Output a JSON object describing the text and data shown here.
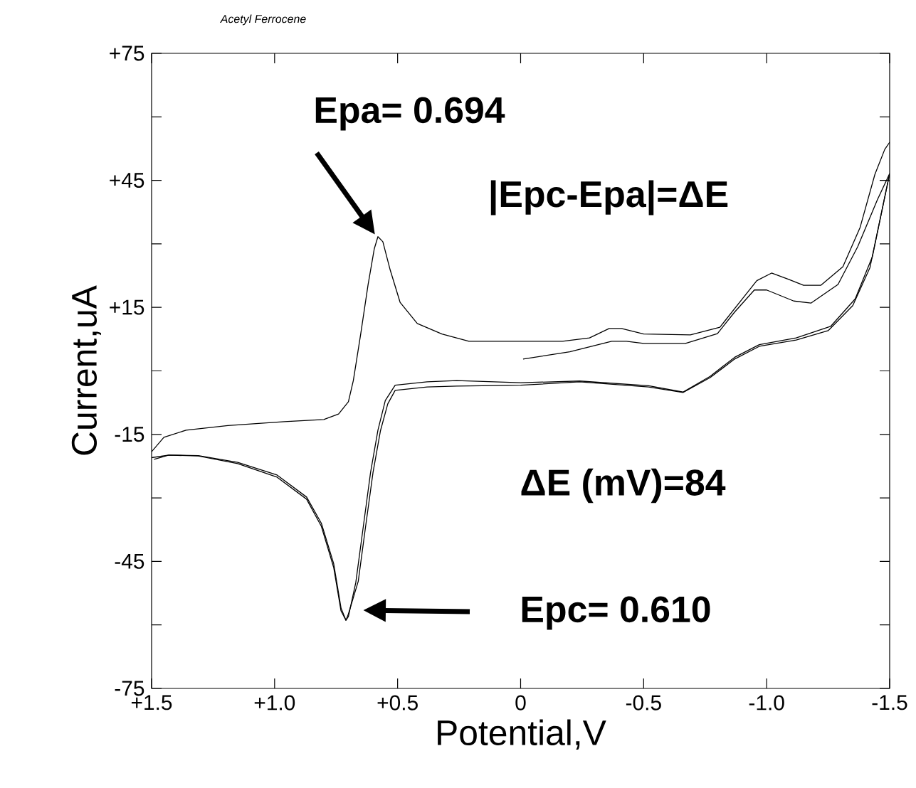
{
  "chart_data": {
    "type": "line",
    "title": "Acetyl Ferrocene",
    "xlabel": "Potential,V",
    "ylabel": "Current,uA",
    "xlim": [
      1.5,
      -1.5
    ],
    "ylim": [
      -75,
      75
    ],
    "xticks": [
      {
        "value": 1.5,
        "label": "+1.5"
      },
      {
        "value": 1.0,
        "label": "+1.0"
      },
      {
        "value": 0.5,
        "label": "+0.5"
      },
      0,
      -0.5,
      {
        "value": -1.0,
        "label": "-1.0"
      },
      -1.5
    ],
    "yticks": [
      {
        "value": 75,
        "label": "+75"
      },
      {
        "value": 60,
        "label": null
      },
      {
        "value": 45,
        "label": "+45"
      },
      {
        "value": 30,
        "label": null
      },
      {
        "value": 15,
        "label": "+15"
      },
      {
        "value": 0,
        "label": null
      },
      -15,
      {
        "value": -30,
        "label": null
      },
      -45,
      {
        "value": -60,
        "label": null
      },
      -75
    ],
    "annotations": [
      "Epa= 0.694",
      "|Epc-Epa|=ΔE",
      "ΔE (mV)=84",
      "Epc= 0.610"
    ],
    "grid": false,
    "series": [
      {
        "color": "#000000",
        "x": [
          1.5,
          1.45,
          1.36,
          1.19,
          0.96,
          0.8,
          0.74,
          0.7,
          0.68,
          0.65,
          0.62,
          0.595,
          0.58,
          0.56,
          0.53,
          0.49,
          0.42,
          0.32,
          0.21,
          0.03,
          -0.17,
          -0.28,
          -0.36,
          -0.41,
          -0.5,
          -0.69,
          -0.81,
          -0.89,
          -0.96,
          -1.02,
          -1.09,
          -1.15,
          -1.22,
          -1.31,
          -1.38,
          -1.44,
          -1.48,
          -1.5
        ],
        "values": [
          -19.1,
          -15.7,
          -14.0,
          -12.9,
          -12.0,
          -11.5,
          -10.2,
          -7.3,
          -2.3,
          8.7,
          20.4,
          28.8,
          31.7,
          30.5,
          23.8,
          16.2,
          11.2,
          8.7,
          7.0,
          7.0,
          7.0,
          7.8,
          10.0,
          10.0,
          8.7,
          8.5,
          10.3,
          16.2,
          21.3,
          23.1,
          21.6,
          20.2,
          20.2,
          24.6,
          33.9,
          46.4,
          52.3,
          54.0
        ]
      },
      {
        "color": "#000000",
        "x": [
          -0.01,
          -0.2,
          -0.37,
          -0.43,
          -0.5,
          -0.67,
          -0.8,
          -0.87,
          -0.95,
          -1.0,
          -1.11,
          -1.18,
          -1.29,
          -1.37,
          -1.45,
          -1.5
        ],
        "values": [
          2.8,
          4.5,
          7.0,
          7.0,
          6.5,
          6.5,
          8.8,
          13.9,
          19.1,
          19.1,
          16.5,
          16.0,
          20.4,
          29.3,
          40.4,
          46.6
        ]
      },
      {
        "color": "#000000",
        "x": [
          -1.5,
          -1.42,
          -1.35,
          -1.25,
          -1.12,
          -0.97,
          -0.87,
          -0.77,
          -0.66,
          -0.52,
          -0.24,
          0.0,
          0.26,
          0.38,
          0.51,
          0.54,
          0.57,
          0.6,
          0.63,
          0.66,
          0.7,
          0.71,
          0.73,
          0.76,
          0.81,
          0.87,
          0.99,
          1.15,
          1.31,
          1.43,
          1.49
        ],
        "values": [
          46.6,
          24.4,
          15.4,
          9.5,
          7.3,
          5.8,
          2.8,
          -1.6,
          -5.1,
          -3.8,
          -2.6,
          -3.4,
          -3.6,
          -3.8,
          -4.6,
          -7.8,
          -14.2,
          -24.0,
          -36.7,
          -49.7,
          -57.4,
          -58.9,
          -56.7,
          -46.4,
          -36.7,
          -30.3,
          -25.1,
          -21.9,
          -20.1,
          -19.9,
          -20.9
        ]
      },
      {
        "color": "#000000",
        "x": [
          -1.5,
          -1.43,
          -1.36,
          -1.26,
          -1.12,
          -0.97,
          -0.87,
          -0.77,
          -0.66,
          -0.52,
          -0.24,
          0.0,
          0.26,
          0.38,
          0.51,
          0.55,
          0.58,
          0.61,
          0.64,
          0.67,
          0.7,
          0.71,
          0.73,
          0.76,
          0.81,
          0.87,
          0.99,
          1.15,
          1.31,
          1.43,
          1.5
        ],
        "values": [
          46.6,
          27.0,
          17.0,
          10.5,
          7.8,
          6.2,
          3.2,
          -1.3,
          -5.0,
          -3.5,
          -2.4,
          -2.8,
          -2.3,
          -2.6,
          -3.4,
          -7.0,
          -14.0,
          -24.0,
          -37.0,
          -50.0,
          -58.0,
          -58.9,
          -56.0,
          -45.5,
          -36.0,
          -29.8,
          -24.6,
          -21.6,
          -20.0,
          -19.9,
          -20.5
        ]
      }
    ]
  }
}
